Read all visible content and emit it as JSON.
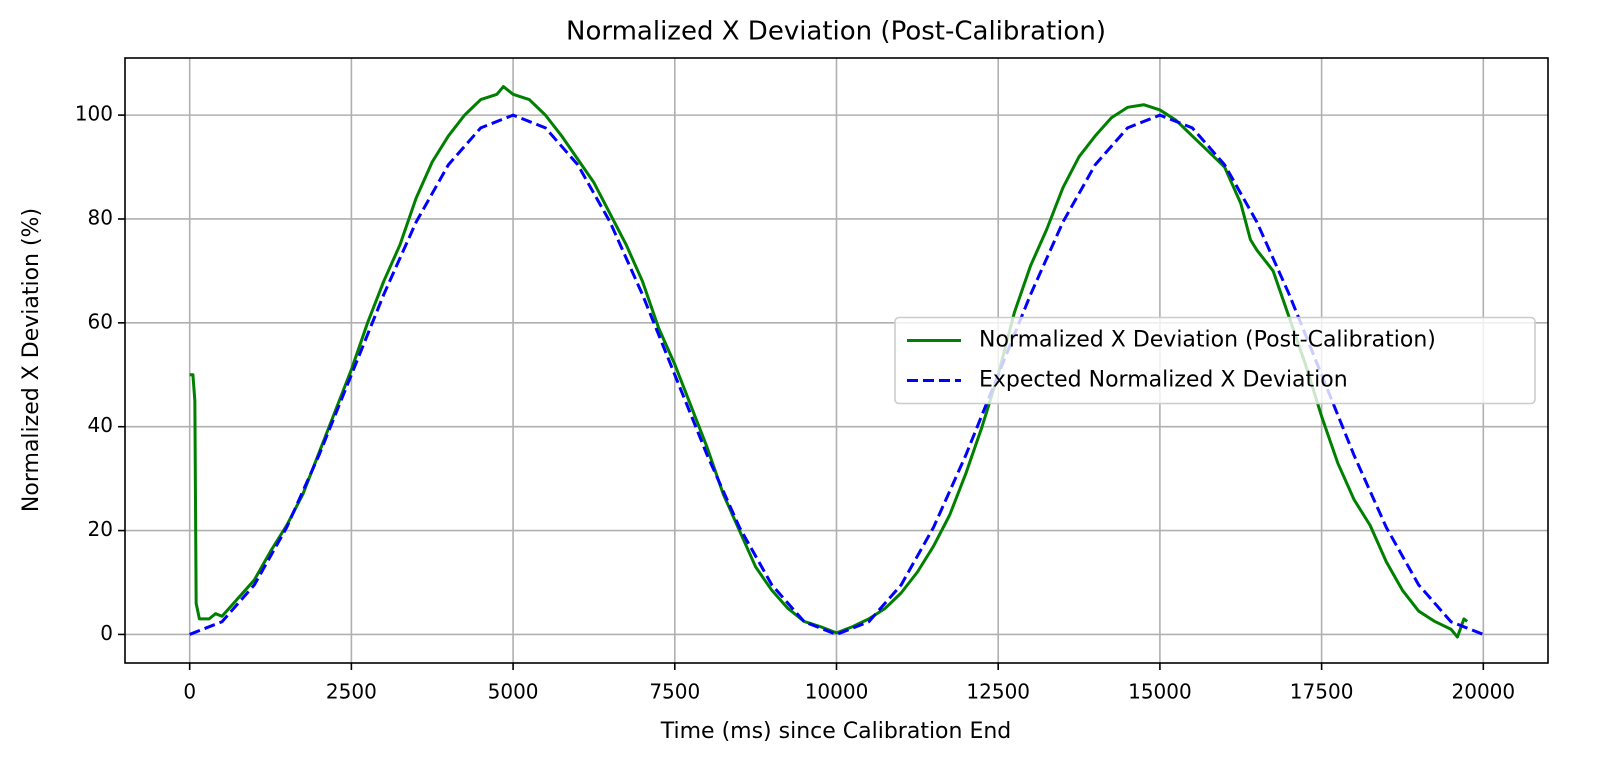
{
  "chart_data": {
    "type": "line",
    "title": "Normalized X Deviation (Post-Calibration)",
    "xlabel": "Time (ms) since Calibration End",
    "ylabel": "Normalized X Deviation (%)",
    "xlim": [
      -1000,
      21000
    ],
    "ylim": [
      -5.5,
      111
    ],
    "xticks": [
      0,
      2500,
      5000,
      7500,
      10000,
      12500,
      15000,
      17500,
      20000
    ],
    "yticks": [
      0,
      20,
      40,
      60,
      80,
      100
    ],
    "grid": true,
    "legend": "center right",
    "series": [
      {
        "name": "Normalized X Deviation (Post-Calibration)",
        "color": "#008000",
        "linestyle": "solid",
        "x": [
          0,
          50,
          80,
          100,
          150,
          300,
          400,
          500,
          750,
          1000,
          1250,
          1500,
          1750,
          2000,
          2250,
          2500,
          2750,
          3000,
          3250,
          3500,
          3750,
          4000,
          4250,
          4500,
          4750,
          4850,
          5000,
          5250,
          5500,
          5750,
          6000,
          6250,
          6500,
          6750,
          7000,
          7250,
          7500,
          7750,
          8000,
          8250,
          8500,
          8750,
          9000,
          9250,
          9500,
          9750,
          10000,
          10250,
          10500,
          10750,
          11000,
          11250,
          11500,
          11750,
          12000,
          12250,
          12500,
          12750,
          13000,
          13250,
          13500,
          13750,
          14000,
          14250,
          14500,
          14750,
          15000,
          15250,
          15500,
          15750,
          16000,
          16250,
          16400,
          16500,
          16750,
          17000,
          17250,
          17500,
          17750,
          18000,
          18250,
          18500,
          18750,
          19000,
          19250,
          19500,
          19600,
          19700,
          19750
        ],
        "values": [
          50,
          50,
          45,
          6,
          3,
          3,
          4,
          3.5,
          7,
          10.5,
          16,
          21,
          27,
          35,
          43,
          51,
          60,
          68,
          75,
          84,
          91,
          96,
          100,
          103,
          104,
          105.5,
          104,
          103,
          100,
          96,
          91.5,
          87,
          81,
          75,
          68,
          59,
          52,
          44,
          36,
          27,
          20,
          13,
          8.5,
          5,
          2.5,
          1.5,
          0.3,
          1.5,
          3,
          5,
          8,
          12,
          17,
          23,
          31,
          40,
          50,
          62,
          71,
          78,
          86,
          92,
          96,
          99.5,
          101.5,
          102,
          101,
          99,
          96,
          93,
          90,
          83,
          76,
          74,
          70,
          61,
          52,
          42,
          33,
          26,
          21,
          14,
          8.5,
          4.5,
          2.5,
          1,
          -0.5,
          3,
          2.5
        ]
      },
      {
        "name": "Expected Normalized X Deviation",
        "color": "#0000ff",
        "linestyle": "dashed",
        "x": [
          0,
          500,
          1000,
          1500,
          2000,
          2500,
          3000,
          3500,
          4000,
          4500,
          5000,
          5500,
          6000,
          6500,
          7000,
          7500,
          8000,
          8500,
          9000,
          9500,
          10000,
          10500,
          11000,
          11500,
          12000,
          12500,
          13000,
          13500,
          14000,
          14500,
          15000,
          15500,
          16000,
          16500,
          17000,
          17500,
          18000,
          18500,
          19000,
          19500,
          20000
        ],
        "values": [
          0,
          2.45,
          9.55,
          20.61,
          34.55,
          50,
          65.45,
          79.39,
          90.45,
          97.55,
          100,
          97.55,
          90.45,
          79.39,
          65.45,
          50,
          34.55,
          20.61,
          9.55,
          2.45,
          0,
          2.45,
          9.55,
          20.61,
          34.55,
          50,
          65.45,
          79.39,
          90.45,
          97.55,
          100,
          97.55,
          90.45,
          79.39,
          65.45,
          50,
          34.55,
          20.61,
          9.55,
          2.45,
          0
        ]
      }
    ]
  }
}
